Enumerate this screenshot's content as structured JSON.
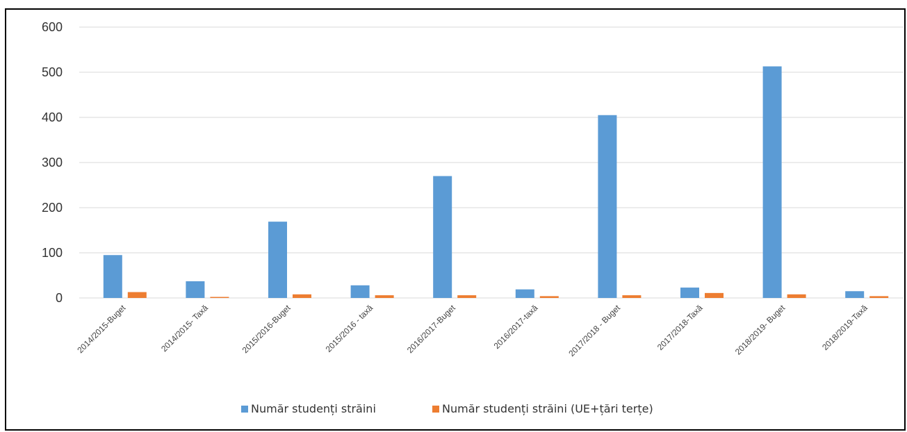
{
  "chart_data": {
    "type": "bar",
    "title": "",
    "xlabel": "",
    "ylabel": "",
    "ylim": [
      0,
      600
    ],
    "yticks": [
      "0",
      "100",
      "200",
      "300",
      "400",
      "500",
      "600"
    ],
    "grid": true,
    "legend_position": "bottom",
    "categories": [
      "2014/2015-Buget",
      "2014/2015- Taxă",
      "2015/2016-Buget",
      "2015/2016 - taxă",
      "2016/2017-Buget",
      "2016/2017-taxă",
      "2017/2018 - Buget",
      "2017/2018-Taxă",
      "2018/2019- Buget",
      "2018/2019-Taxă"
    ],
    "series": [
      {
        "name": "Număr studenți străini",
        "color": "#5b9bd5",
        "values": [
          95,
          37,
          169,
          28,
          270,
          19,
          405,
          23,
          513,
          15
        ]
      },
      {
        "name": "Număr studenți străini (UE+țări terțe)",
        "color": "#ed7d31",
        "values": [
          13,
          2,
          8,
          6,
          6,
          4,
          6,
          11,
          8,
          4
        ]
      }
    ]
  }
}
